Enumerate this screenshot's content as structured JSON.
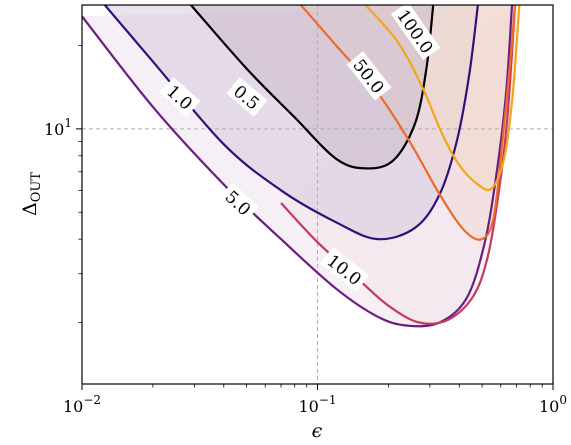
{
  "chart_data": {
    "type": "line",
    "subtype": "contour",
    "xscale": "log",
    "yscale": "log",
    "xlim": [
      0.01,
      1.0
    ],
    "ylim": [
      1.2,
      28
    ],
    "xlabel": "ϵ",
    "ylabel": "ΔOUT",
    "ylabel_main": "Δ",
    "ylabel_sub": "OUT",
    "grid": "dashed crosshair at ϵ = 0.1 and ΔOUT = 10",
    "xticks": [
      {
        "value": 0.01,
        "base": "10",
        "exp": "−2"
      },
      {
        "value": 0.1,
        "base": "10",
        "exp": "−1"
      },
      {
        "value": 1.0,
        "base": "10",
        "exp": "0"
      }
    ],
    "yticks": [
      {
        "value": 10,
        "base": "10",
        "exp": "1"
      }
    ],
    "series": [
      {
        "level": "0.5",
        "color": "#000000",
        "fill": "#c9b7c8",
        "points": [
          [
            0.029,
            28
          ],
          [
            0.05,
            16.5
          ],
          [
            0.08,
            11.0
          ],
          [
            0.12,
            7.8
          ],
          [
            0.16,
            7.2
          ],
          [
            0.21,
            7.7
          ],
          [
            0.26,
            10.5
          ],
          [
            0.29,
            16.5
          ],
          [
            0.31,
            28
          ]
        ],
        "label": {
          "x": 0.05,
          "y": 13.0,
          "angle": 40
        }
      },
      {
        "level": "1.0",
        "color": "#31107a",
        "fill": "#d4c8dc",
        "points": [
          [
            0.0125,
            28
          ],
          [
            0.02,
            17.5
          ],
          [
            0.04,
            8.8
          ],
          [
            0.07,
            6.0
          ],
          [
            0.12,
            4.6
          ],
          [
            0.18,
            4.0
          ],
          [
            0.26,
            4.4
          ],
          [
            0.33,
            5.8
          ],
          [
            0.39,
            9.0
          ],
          [
            0.44,
            15.5
          ],
          [
            0.48,
            28
          ]
        ],
        "label": {
          "x": 0.026,
          "y": 13.0,
          "angle": 42
        }
      },
      {
        "level": "5.0",
        "color": "#6b1c80",
        "fill": "#ede0ec",
        "points": [
          [
            0.01,
            25.5
          ],
          [
            0.02,
            12.0
          ],
          [
            0.04,
            6.3
          ],
          [
            0.07,
            4.0
          ],
          [
            0.12,
            2.65
          ],
          [
            0.18,
            2.1
          ],
          [
            0.24,
            1.95
          ],
          [
            0.33,
            2.0
          ],
          [
            0.43,
            2.45
          ],
          [
            0.51,
            3.8
          ],
          [
            0.57,
            6.5
          ],
          [
            0.63,
            13.0
          ],
          [
            0.67,
            28
          ]
        ],
        "label": {
          "x": 0.046,
          "y": 5.4,
          "angle": 43
        }
      },
      {
        "level": "10.0",
        "color": "#c53a5e",
        "fill": "#f4e4ec",
        "points": [
          [
            0.07,
            5.4
          ],
          [
            0.1,
            3.9
          ],
          [
            0.15,
            2.85
          ],
          [
            0.2,
            2.3
          ],
          [
            0.27,
            2.0
          ],
          [
            0.36,
            2.05
          ],
          [
            0.46,
            2.5
          ],
          [
            0.53,
            3.5
          ],
          [
            0.59,
            6.0
          ],
          [
            0.64,
            11.0
          ],
          [
            0.69,
            28
          ]
        ],
        "label": {
          "x": 0.13,
          "y": 3.1,
          "angle": 38
        }
      },
      {
        "level": "50.0",
        "color": "#ea6b2a",
        "fill": "#f2d9d3",
        "points": [
          [
            0.085,
            28
          ],
          [
            0.12,
            20.0
          ],
          [
            0.18,
            13.5
          ],
          [
            0.25,
            8.8
          ],
          [
            0.33,
            5.8
          ],
          [
            0.42,
            4.3
          ],
          [
            0.5,
            4.0
          ],
          [
            0.56,
            4.8
          ],
          [
            0.61,
            9.0
          ],
          [
            0.66,
            18.0
          ],
          [
            0.69,
            28
          ]
        ],
        "label": {
          "x": 0.165,
          "y": 15.5,
          "angle": 52
        }
      },
      {
        "level": "100.0",
        "color": "#f3a51c",
        "fill": "#f0d9c9",
        "points": [
          [
            0.16,
            28
          ],
          [
            0.22,
            20.5
          ],
          [
            0.28,
            14.0
          ],
          [
            0.34,
            9.5
          ],
          [
            0.4,
            7.4
          ],
          [
            0.48,
            6.3
          ],
          [
            0.55,
            6.1
          ],
          [
            0.62,
            7.8
          ],
          [
            0.67,
            12.5
          ],
          [
            0.7,
            20.0
          ],
          [
            0.72,
            28
          ]
        ],
        "label": {
          "x": 0.26,
          "y": 22.5,
          "angle": 55
        }
      }
    ]
  }
}
